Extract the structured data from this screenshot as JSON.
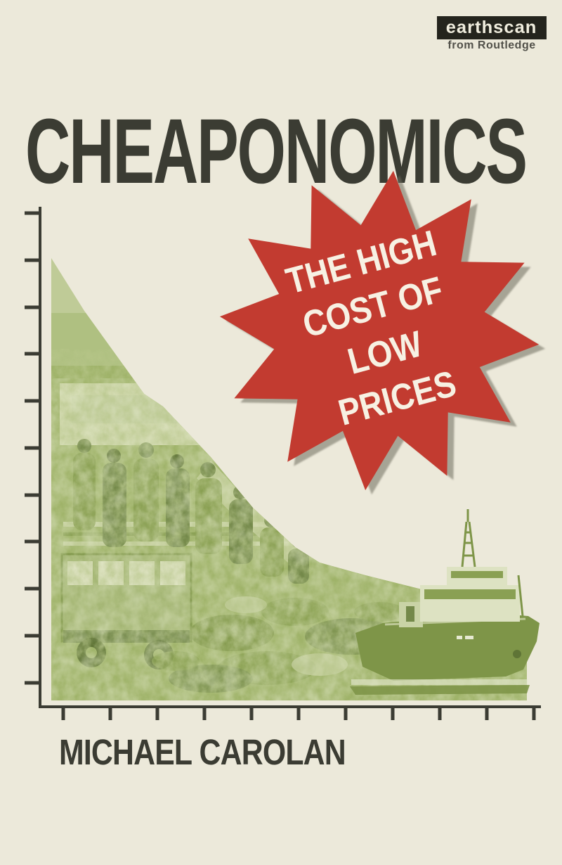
{
  "cover": {
    "title": "CHEAPONOMICS",
    "author": "MICHAEL CAROLAN",
    "publisher": {
      "name": "earthscan",
      "imprint": "from Routledge"
    },
    "badge": {
      "full_text": "THE HIGH COST OF LOW PRICES",
      "lines": [
        "THE HIGH",
        "COST OF",
        "LOW",
        "PRICES"
      ]
    },
    "art": {
      "axes": "declining-graph-axes",
      "scenes": [
        "crowd",
        "truck",
        "rubble-heap",
        "cargo-ship"
      ]
    },
    "colors": {
      "background": "#ECE9DA",
      "ink": "#3B3C33",
      "star_red": "#C23B30",
      "star_text": "#F7F1E3",
      "green_pale": "#D8DEB9",
      "green_light": "#BFCB97",
      "green_mid": "#9FB369",
      "green_dark": "#7E9548",
      "green_deep": "#5F7436",
      "logo_bg": "#24241D",
      "logo_text": "#F0EDDE",
      "imprint_text": "#52514A"
    }
  }
}
